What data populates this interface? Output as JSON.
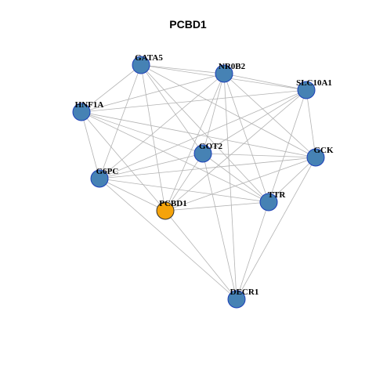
{
  "title": "PCBD1",
  "nodes": [
    {
      "label": "GATA5"
    },
    {
      "label": "NR0B2"
    },
    {
      "label": "SLC10A1"
    },
    {
      "label": "HNF1A"
    },
    {
      "label": "GOT2"
    },
    {
      "label": "GCK"
    },
    {
      "label": "G6PC"
    },
    {
      "label": "PCBD1"
    },
    {
      "label": "TTR"
    },
    {
      "label": "DECR1"
    }
  ]
}
